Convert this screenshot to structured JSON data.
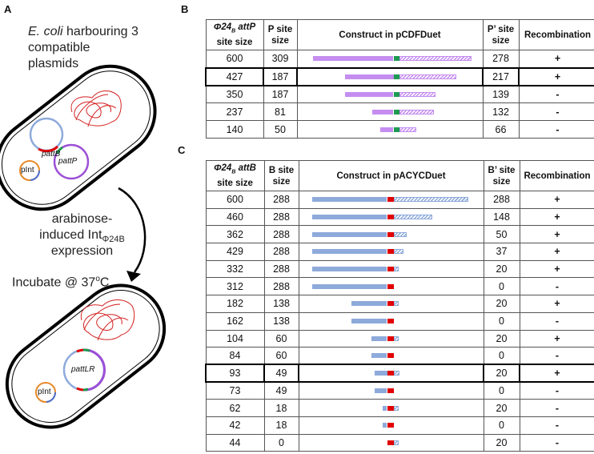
{
  "panels": {
    "a": "A",
    "b": "B",
    "c": "C"
  },
  "panel_a": {
    "title_italic": "E. coli",
    "title_rest": " harbouring 3",
    "title_line2": "compatible",
    "title_line3": "plasmids",
    "plasmid_attb": "pattB",
    "plasmid_attp": "pattP",
    "plasmid_int": "pInt",
    "plasmid_attlr": "pattLR",
    "step_line1": "arabinose-",
    "step_line2_main": "induced Int",
    "step_line2_sub": "Φ24B",
    "step_line3": "expression",
    "incubate_main": "Incubate @ 37",
    "incubate_sup": "o",
    "incubate_unit": "C"
  },
  "colors": {
    "attp_arm": "#c58df0",
    "attp_core": "#1e9a52",
    "attb_arm": "#8eaadb",
    "attb_core": "#e00000",
    "pint": "#e8892a",
    "chromosome": "#d42020"
  },
  "table_b": {
    "headers": {
      "col1_phi": "Φ24",
      "col1_sub": "B",
      "col1_att": " attP",
      "col1_line2": "site  size",
      "col2": "P site size",
      "col3": "Construct in pCDFDuet",
      "col4": "P’ site size",
      "col5": "Recombination"
    },
    "rows": [
      {
        "site": "600",
        "left": "309",
        "right": "278",
        "rec": "+",
        "highlight": false
      },
      {
        "site": "427",
        "left": "187",
        "right": "217",
        "rec": "+",
        "highlight": true
      },
      {
        "site": "350",
        "left": "187",
        "right": "139",
        "rec": "-",
        "highlight": false
      },
      {
        "site": "237",
        "left": "81",
        "right": "132",
        "rec": "-",
        "highlight": false
      },
      {
        "site": "140",
        "left": "50",
        "right": "66",
        "rec": "-",
        "highlight": false
      }
    ]
  },
  "table_c": {
    "headers": {
      "col1_phi": "Φ24",
      "col1_sub": "B",
      "col1_att": " attB",
      "col1_line2": "site  size",
      "col2": "B site size",
      "col3": "Construct in pACYCDuet",
      "col4": "B’ site size",
      "col5": "Recombination"
    },
    "rows": [
      {
        "site": "600",
        "left": "288",
        "right": "288",
        "rec": "+",
        "highlight": false
      },
      {
        "site": "460",
        "left": "288",
        "right": "148",
        "rec": "+",
        "highlight": false
      },
      {
        "site": "362",
        "left": "288",
        "right": "50",
        "rec": "+",
        "highlight": false
      },
      {
        "site": "429",
        "left": "288",
        "right": "37",
        "rec": "+",
        "highlight": false
      },
      {
        "site": "332",
        "left": "288",
        "right": "20",
        "rec": "+",
        "highlight": false
      },
      {
        "site": "312",
        "left": "288",
        "right": "0",
        "rec": "-",
        "highlight": false
      },
      {
        "site": "182",
        "left": "138",
        "right": "20",
        "rec": "+",
        "highlight": false
      },
      {
        "site": "162",
        "left": "138",
        "right": "0",
        "rec": "-",
        "highlight": false
      },
      {
        "site": "104",
        "left": "60",
        "right": "20",
        "rec": "+",
        "highlight": false
      },
      {
        "site": "84",
        "left": "60",
        "right": "0",
        "rec": "-",
        "highlight": false
      },
      {
        "site": "93",
        "left": "49",
        "right": "20",
        "rec": "+",
        "highlight": true
      },
      {
        "site": "73",
        "left": "49",
        "right": "0",
        "rec": "-",
        "highlight": false
      },
      {
        "site": "62",
        "left": "18",
        "right": "20",
        "rec": "-",
        "highlight": false
      },
      {
        "site": "42",
        "left": "18",
        "right": "0",
        "rec": "-",
        "highlight": false
      },
      {
        "site": "44",
        "left": "0",
        "right": "20",
        "rec": "-",
        "highlight": false
      }
    ]
  }
}
